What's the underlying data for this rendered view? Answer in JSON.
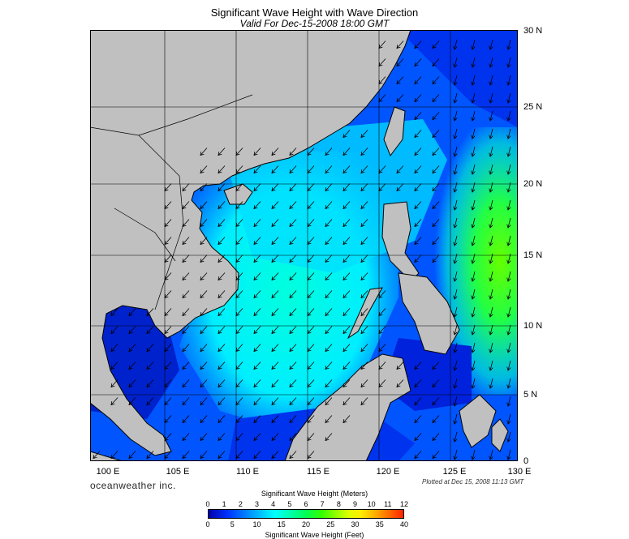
{
  "title": "Significant Wave Height with Wave Direction",
  "subtitle": "Valid For Dec-15-2008 18:00 GMT",
  "latitude_labels": [
    "30 N",
    "25 N",
    "20 N",
    "15 N",
    "10 N",
    "5 N",
    "0"
  ],
  "longitude_labels": [
    "100 E",
    "105 E",
    "110 E",
    "115 E",
    "120 E",
    "125 E",
    "130 E"
  ],
  "brand": "oceanweather inc.",
  "plotted": "Plotted at Dec 15, 2008 11:13 GMT",
  "colorbar": {
    "meters_title": "Significant Wave Height (Meters)",
    "meters_ticks": [
      "0",
      "1",
      "2",
      "3",
      "4",
      "5",
      "6",
      "7",
      "8",
      "9",
      "10",
      "11",
      "12"
    ],
    "feet_title": "Significant Wave Height (Feet)",
    "feet_ticks": [
      "0",
      "5",
      "10",
      "15",
      "20",
      "25",
      "30",
      "35",
      "40"
    ]
  },
  "colors": {
    "land": "#c0c0c0",
    "deep_blue": "#0000aa",
    "blue": "#0044ff",
    "cyan": "#00eeff",
    "green": "#33ff00"
  },
  "arrow_direction": "toward southwest"
}
